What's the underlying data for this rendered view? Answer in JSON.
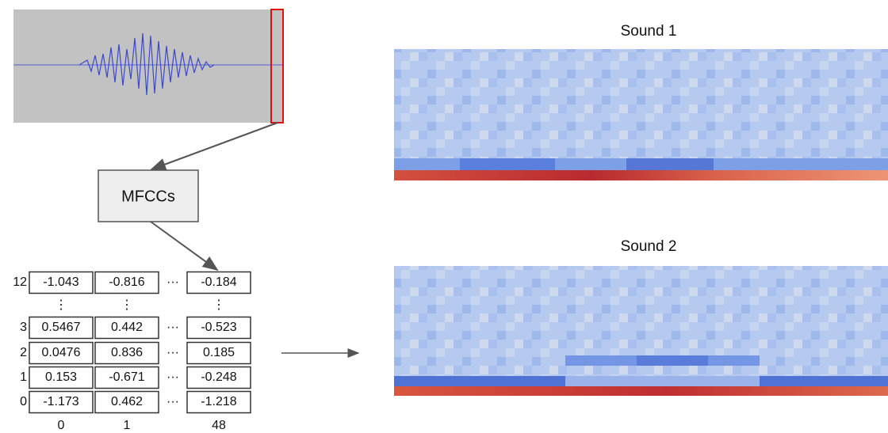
{
  "diagram": {
    "box_label": "MFCCs",
    "table": {
      "ellipsis_vertical": "⋮",
      "ellipsis_horizontal": "···",
      "rows": [
        {
          "label": "12",
          "cells": [
            "-1.043",
            "-0.816",
            "-0.184"
          ]
        },
        {
          "label": "3",
          "cells": [
            "0.5467",
            "0.442",
            "-0.523"
          ]
        },
        {
          "label": "2",
          "cells": [
            "0.0476",
            "0.836",
            "0.185"
          ]
        },
        {
          "label": "1",
          "cells": [
            "0.153",
            "-0.671",
            "-0.248"
          ]
        },
        {
          "label": "0",
          "cells": [
            "-1.173",
            "0.462",
            "-1.218"
          ]
        }
      ],
      "column_labels": [
        "0",
        "1",
        "48"
      ]
    },
    "spectrograms": [
      {
        "title": "Sound 1"
      },
      {
        "title": "Sound 2"
      }
    ]
  }
}
